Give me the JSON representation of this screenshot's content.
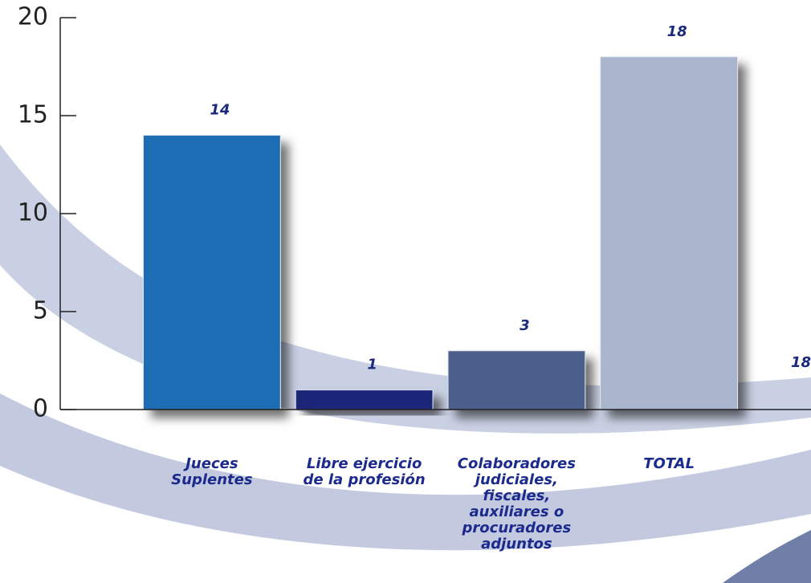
{
  "chart_data": {
    "type": "bar",
    "categories": [
      "Jueces Suplentes",
      "Libre ejercicio de la profesión",
      "Colaboradores judiciales, fiscales, auxiliares o procuradores adjuntos",
      "TOTAL"
    ],
    "values": [
      14,
      1,
      3,
      18
    ],
    "colors": [
      "#1a6db3",
      "#1e2878",
      "#4b5f8c",
      "#a9b5cd"
    ],
    "ylim": [
      0,
      20
    ],
    "yticks": [
      0,
      5,
      10,
      15,
      20
    ],
    "annotation": "18"
  }
}
